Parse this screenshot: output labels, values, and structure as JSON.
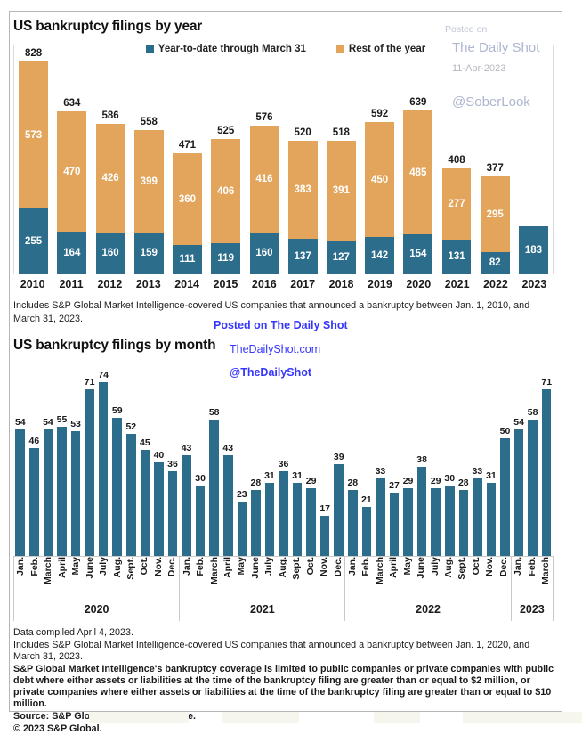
{
  "page": {
    "chart1": {
      "title": "US bankruptcy filings by year",
      "caption": "Includes S&P Global Market Intelligence-covered US companies that announced a bankruptcy between Jan. 1, 2010, and March 31, 2023."
    },
    "chart2": {
      "title": "US bankruptcy filings by month"
    },
    "watermark_top": {
      "line1": "Posted on",
      "line2": "The Daily Shot",
      "line3": "11-Apr-2023",
      "line4": "@SoberLook",
      "color": "#aeb5cf"
    },
    "watermark_mid": {
      "line1": "Posted on The Daily Shot",
      "line2": "TheDailyShot.com",
      "line3": "@TheDailyShot",
      "color": "#3636ff"
    },
    "footer": {
      "line1": "Data compiled April 4, 2023.",
      "line2": "Includes S&P Global Market Intelligence-covered US companies that announced a bankruptcy between Jan. 1, 2020, and March 31, 2023.",
      "line3": "S&P Global Market Intelligence's bankruptcy coverage is limited to public companies or private companies with public debt where either assets or liabilities at the time of the bankruptcy filing are greater than or equal to $2 million, or private companies where either assets or liabilities at the time of the bankruptcy filing are greater than or equal to $10 million.",
      "line4": "Source: S&P Global Market Intelligence.",
      "line5": "© 2023 S&P Global."
    }
  },
  "chart_data": [
    {
      "type": "bar",
      "stacked": true,
      "title": "US bankruptcy filings by year",
      "categories": [
        "2010",
        "2011",
        "2012",
        "2013",
        "2014",
        "2015",
        "2016",
        "2017",
        "2018",
        "2019",
        "2020",
        "2021",
        "2022",
        "2023"
      ],
      "series": [
        {
          "name": "Year-to-date through March 31",
          "color": "#2d6d8c",
          "values": [
            255,
            164,
            160,
            159,
            111,
            119,
            160,
            137,
            127,
            142,
            154,
            131,
            82,
            183
          ]
        },
        {
          "name": "Rest of the year",
          "color": "#e3a55c",
          "values": [
            573,
            470,
            426,
            399,
            360,
            406,
            416,
            383,
            391,
            450,
            485,
            277,
            295,
            null
          ]
        }
      ],
      "totals": [
        828,
        634,
        586,
        558,
        471,
        525,
        576,
        520,
        518,
        592,
        639,
        408,
        377,
        183
      ],
      "ylim": [
        0,
        828
      ],
      "legend_position": "top",
      "grid": false
    },
    {
      "type": "bar",
      "title": "US bankruptcy filings by month",
      "bar_color": "#2d6d8c",
      "ylim": [
        0,
        74
      ],
      "grid": false,
      "groups": [
        {
          "year": "2020",
          "months": [
            "Jan.",
            "Feb.",
            "March",
            "April",
            "May",
            "June",
            "July",
            "Aug.",
            "Sept.",
            "Oct.",
            "Nov.",
            "Dec."
          ],
          "values": [
            54,
            46,
            54,
            55,
            53,
            71,
            74,
            59,
            52,
            45,
            40,
            36
          ]
        },
        {
          "year": "2021",
          "months": [
            "Jan.",
            "Feb.",
            "March",
            "April",
            "May",
            "June",
            "July",
            "Aug.",
            "Sept.",
            "Oct.",
            "Nov.",
            "Dec."
          ],
          "values": [
            43,
            30,
            58,
            43,
            23,
            28,
            31,
            36,
            31,
            29,
            17,
            39
          ]
        },
        {
          "year": "2022",
          "months": [
            "Jan.",
            "Feb.",
            "March",
            "April",
            "May",
            "June",
            "July",
            "Aug.",
            "Sept.",
            "Oct.",
            "Nov.",
            "Dec."
          ],
          "values": [
            28,
            21,
            33,
            27,
            29,
            38,
            29,
            30,
            28,
            33,
            31,
            50
          ]
        },
        {
          "year": "2023",
          "months": [
            "Jan.",
            "Feb.",
            "March"
          ],
          "values": [
            54,
            58,
            71
          ]
        }
      ]
    }
  ]
}
